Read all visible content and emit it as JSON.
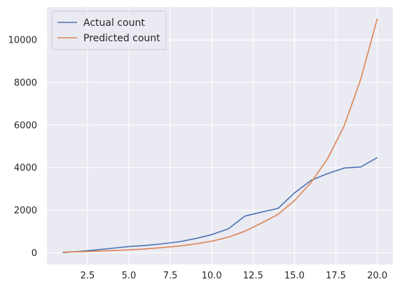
{
  "chart_data": {
    "type": "line",
    "x": [
      1,
      2,
      3,
      4,
      5,
      6,
      7,
      8,
      9,
      10,
      11,
      12,
      13,
      14,
      15,
      16,
      17,
      18,
      19,
      20
    ],
    "series": [
      {
        "name": "Actual count",
        "color": "#4c72b0",
        "values": [
          5,
          60,
          130,
          210,
          290,
          340,
          420,
          510,
          660,
          850,
          1120,
          1720,
          1910,
          2080,
          2810,
          3400,
          3720,
          3980,
          4030,
          4470
        ]
      },
      {
        "name": "Predicted count",
        "color": "#dd8452",
        "values": [
          30,
          45,
          70,
          100,
          135,
          180,
          240,
          310,
          410,
          540,
          730,
          1010,
          1390,
          1800,
          2450,
          3300,
          4420,
          5960,
          8150,
          11000
        ]
      }
    ],
    "x_ticks": [
      2.5,
      5.0,
      7.5,
      10.0,
      12.5,
      15.0,
      17.5,
      20.0
    ],
    "x_tick_labels": [
      "2.5",
      "5.0",
      "7.5",
      "10.0",
      "12.5",
      "15.0",
      "17.5",
      "20.0"
    ],
    "y_ticks": [
      0,
      2000,
      4000,
      6000,
      8000,
      10000
    ],
    "y_tick_labels": [
      "0",
      "2000",
      "4000",
      "6000",
      "8000",
      "10000"
    ],
    "xlim": [
      0.05,
      20.95
    ],
    "ylim": [
      -550,
      11550
    ],
    "grid": true,
    "legend_position": "top-left",
    "background_color": "#eaeaf2",
    "grid_color": "#ffffff"
  }
}
